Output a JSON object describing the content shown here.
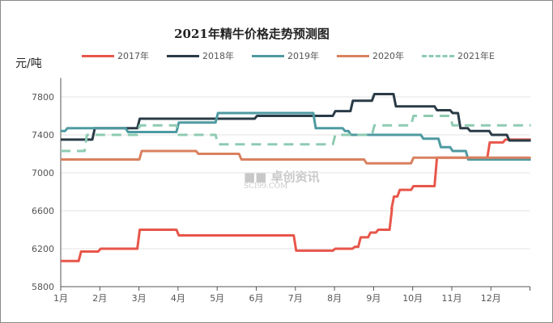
{
  "chart_data": {
    "type": "line",
    "title": "2021年精牛价格走势预测图",
    "ylabel": "元/吨",
    "xlabel": "",
    "ylim": [
      5800,
      8000
    ],
    "yticks": [
      5800,
      6200,
      6600,
      7000,
      7400,
      7800
    ],
    "xticks": [
      "1月",
      "2月",
      "3月",
      "4月",
      "5月",
      "6月",
      "7月",
      "8月",
      "9月",
      "10月",
      "11月",
      "12月"
    ],
    "grid": "horizontal",
    "legend": "top",
    "watermark": "卓创资讯 SCI99.COM",
    "series": [
      {
        "name": "2017年",
        "color": "#e8564a",
        "dash": false,
        "steps": [
          [
            1,
            6070
          ],
          [
            1.5,
            6170
          ],
          [
            2,
            6200
          ],
          [
            3,
            6400
          ],
          [
            4,
            6340
          ],
          [
            7,
            6180
          ],
          [
            8,
            6200
          ],
          [
            8.5,
            6220
          ],
          [
            8.65,
            6320
          ],
          [
            8.9,
            6370
          ],
          [
            9.1,
            6400
          ],
          [
            9.45,
            6620
          ],
          [
            9.5,
            6750
          ],
          [
            9.65,
            6820
          ],
          [
            10,
            6860
          ],
          [
            10.6,
            7160
          ],
          [
            11.95,
            7320
          ],
          [
            12.35,
            7350
          ],
          [
            13,
            7350
          ]
        ]
      },
      {
        "name": "2018年",
        "color": "#2a3b47",
        "dash": false,
        "steps": [
          [
            1,
            7350
          ],
          [
            1.85,
            7470
          ],
          [
            3,
            7570
          ],
          [
            6,
            7600
          ],
          [
            8,
            7650
          ],
          [
            8.45,
            7760
          ],
          [
            9,
            7830
          ],
          [
            9.55,
            7700
          ],
          [
            10.6,
            7660
          ],
          [
            11,
            7630
          ],
          [
            11.2,
            7470
          ],
          [
            11.45,
            7440
          ],
          [
            12,
            7400
          ],
          [
            12.45,
            7340
          ],
          [
            13,
            7340
          ]
        ]
      },
      {
        "name": "2019年",
        "color": "#4e9aa1",
        "dash": false,
        "steps": [
          [
            1,
            7440
          ],
          [
            1.15,
            7470
          ],
          [
            2.7,
            7430
          ],
          [
            4,
            7530
          ],
          [
            5,
            7630
          ],
          [
            7.5,
            7470
          ],
          [
            8.25,
            7440
          ],
          [
            8.4,
            7400
          ],
          [
            10.25,
            7360
          ],
          [
            10.7,
            7270
          ],
          [
            11,
            7230
          ],
          [
            11.4,
            7140
          ],
          [
            13,
            7140
          ]
        ]
      },
      {
        "name": "2020年",
        "color": "#d9815f",
        "dash": false,
        "steps": [
          [
            1,
            7140
          ],
          [
            3.05,
            7230
          ],
          [
            4.5,
            7200
          ],
          [
            5.6,
            7140
          ],
          [
            8.8,
            7100
          ],
          [
            10,
            7160
          ],
          [
            13,
            7160
          ]
        ]
      },
      {
        "name": "2021年E",
        "color": "#8ecbb2",
        "dash": true,
        "steps": [
          [
            1,
            7230
          ],
          [
            1.65,
            7400
          ],
          [
            3,
            7500
          ],
          [
            4,
            7400
          ],
          [
            5,
            7300
          ],
          [
            8,
            7400
          ],
          [
            9,
            7500
          ],
          [
            10,
            7600
          ],
          [
            11,
            7500
          ],
          [
            13,
            7500
          ]
        ]
      }
    ]
  }
}
